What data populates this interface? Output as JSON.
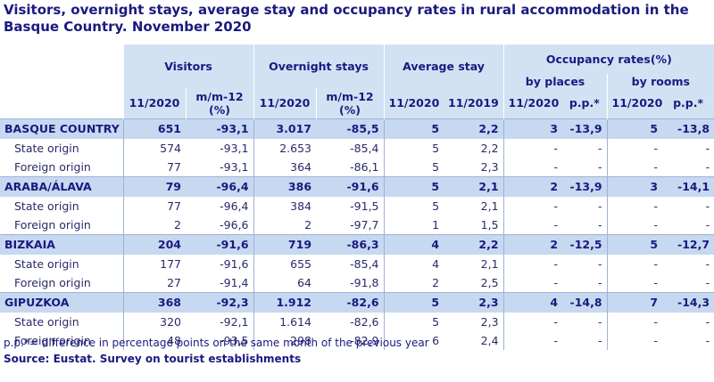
{
  "title": "Visitors, overnight stays, average stay and occupancy rates in rural accommodation in the Basque Country.  November 2020",
  "header": {
    "visitors": "Visitors",
    "overnight": "Overnight stays",
    "avg_stay": "Average stay",
    "occupancy": "Occupancy rates(%)",
    "by_places": "by places",
    "by_rooms": "by rooms",
    "cols": [
      "11/2020",
      "m/m-12 (%)",
      "11/2020",
      "m/m-12 (%)",
      "11/2020",
      "11/2019",
      "11/2020",
      "p.p.*",
      "11/2020",
      "p.p.*"
    ],
    "mm_line1": "m/m-12",
    "mm_line2": "(%)"
  },
  "rows": [
    {
      "label": "BASQUE COUNTRY",
      "type": "main",
      "v": [
        "651",
        "-93,1",
        "3.017",
        "-85,5",
        "5",
        "2,2",
        "3",
        "-13,9",
        "5",
        "-13,8"
      ]
    },
    {
      "label": "State origin",
      "type": "sub",
      "v": [
        "574",
        "-93,1",
        "2.653",
        "-85,4",
        "5",
        "2,2",
        "-",
        "-",
        "-",
        "-"
      ]
    },
    {
      "label": "Foreign origin",
      "type": "sub",
      "v": [
        "77",
        "-93,1",
        "364",
        "-86,1",
        "5",
        "2,3",
        "-",
        "-",
        "-",
        "-"
      ]
    },
    {
      "label": "ARABA/ÁLAVA",
      "type": "region",
      "v": [
        "79",
        "-96,4",
        "386",
        "-91,6",
        "5",
        "2,1",
        "2",
        "-13,9",
        "3",
        "-14,1"
      ]
    },
    {
      "label": "State origin",
      "type": "sub",
      "v": [
        "77",
        "-96,4",
        "384",
        "-91,5",
        "5",
        "2,1",
        "-",
        "-",
        "-",
        "-"
      ]
    },
    {
      "label": "Foreign origin",
      "type": "sub",
      "v": [
        "2",
        "-96,6",
        "2",
        "-97,7",
        "1",
        "1,5",
        "-",
        "-",
        "-",
        "-"
      ]
    },
    {
      "label": "BIZKAIA",
      "type": "region",
      "v": [
        "204",
        "-91,6",
        "719",
        "-86,3",
        "4",
        "2,2",
        "2",
        "-12,5",
        "5",
        "-12,7"
      ]
    },
    {
      "label": "State origin",
      "type": "sub",
      "v": [
        "177",
        "-91,6",
        "655",
        "-85,4",
        "4",
        "2,1",
        "-",
        "-",
        "-",
        "-"
      ]
    },
    {
      "label": "Foreign origin",
      "type": "sub",
      "v": [
        "27",
        "-91,4",
        "64",
        "-91,8",
        "2",
        "2,5",
        "-",
        "-",
        "-",
        "-"
      ]
    },
    {
      "label": "GIPUZKOA",
      "type": "region",
      "v": [
        "368",
        "-92,3",
        "1.912",
        "-82,6",
        "5",
        "2,3",
        "4",
        "-14,8",
        "7",
        "-14,3"
      ]
    },
    {
      "label": "State origin",
      "type": "sub",
      "v": [
        "320",
        "-92,1",
        "1.614",
        "-82,6",
        "5",
        "2,3",
        "-",
        "-",
        "-",
        "-"
      ]
    },
    {
      "label": "Foreign origin",
      "type": "sub",
      "v": [
        "48",
        "-93,5",
        "298",
        "-82,9",
        "6",
        "2,4",
        "-",
        "-",
        "-",
        "-"
      ]
    }
  ],
  "footnote": "p.p.*= difference in percentage points on the same month of the previous year",
  "source": "Source: Eustat. Survey on tourist establishments"
}
